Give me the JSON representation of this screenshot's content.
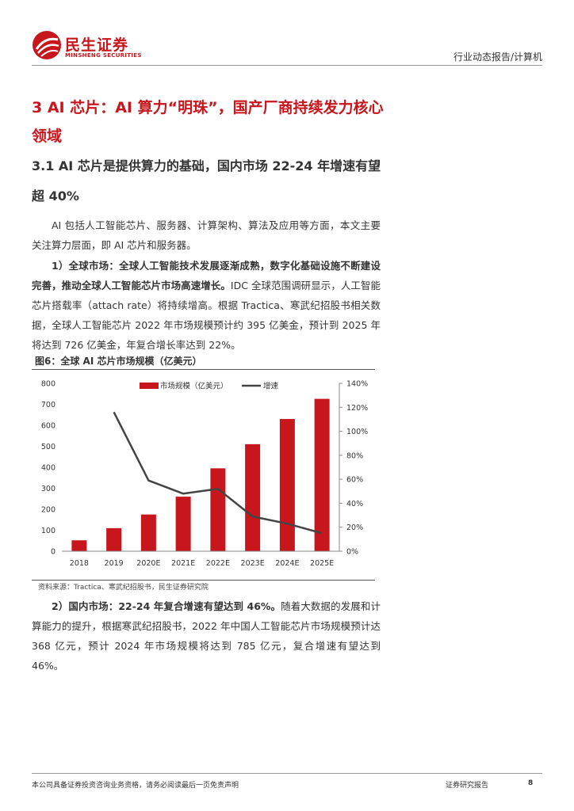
{
  "header": {
    "logo_cn": "民生证券",
    "logo_en": "MINSHENG SECURITIES",
    "right_text": "行业动态报告/计算机"
  },
  "heading1": "3 AI 芯片：AI 算力“明珠”，国产厂商持续发力核心领域",
  "heading2": "3.1 AI 芯片是提供算力的基础，国内市场 22-24 年增速有望超 40%",
  "para1": "AI 包括人工智能芯片、服务器、计算架构、算法及应用等方面，本文主要关注算力层面，即 AI 芯片和服务器。",
  "para2": {
    "bold": "1）全球市场：全球人工智能技术发展逐渐成熟，数字化基础设施不断建设完善，推动全球人工智能芯片市场高速增长。",
    "rest": "IDC 全球范围调研显示，人工智能芯片搭载率（attach rate）将持续增高。根据 Tractica、寒武纪招股书相关数据，全球人工智能芯片 2022 年市场规模预计约 395 亿美金，预计到 2025 年将达到 726 亿美金，年复合增长率达到 22%。"
  },
  "figure": {
    "title": "图6：全球 AI 芯片市场规模（亿美元）",
    "source": "资料来源：Tractica、寒武纪招股书，民生证券研究院"
  },
  "para3": {
    "bold": "2）国内市场：22-24 年复合增速有望达到 46%。",
    "rest": "随着大数据的发展和计算能力的提升，根据寒武纪招股书，2022 年中国人工智能芯片市场规模预计达 368 亿元，预计 2024 年市场规模将达到 785 亿元，复合增速有望达到 46%。"
  },
  "footer": {
    "left": "本公司具备证券投资咨询业务资格，请务必阅读最后一页免责声明",
    "middle": "证券研究报告",
    "page": "8"
  },
  "colors": {
    "brand_red": "#c8161d",
    "bar_red": "#c8161d",
    "line_gray": "#444444"
  },
  "chart_data": {
    "type": "bar",
    "categories": [
      "2018",
      "2019",
      "2020E",
      "2021E",
      "2022E",
      "2023E",
      "2024E",
      "2025E"
    ],
    "series": [
      {
        "name": "市场规模（亿美元）",
        "type": "bar",
        "axis": "left",
        "values": [
          52,
          110,
          175,
          260,
          395,
          510,
          630,
          726
        ]
      },
      {
        "name": "增速",
        "type": "line",
        "axis": "right",
        "values": [
          null,
          116,
          59,
          48,
          52,
          29,
          23,
          15
        ]
      }
    ],
    "yticks_left": [
      "0",
      "100",
      "200",
      "300",
      "400",
      "500",
      "600",
      "700",
      "800"
    ],
    "yticks_right": [
      "0%",
      "20%",
      "40%",
      "60%",
      "80%",
      "100%",
      "120%",
      "140%"
    ],
    "ylim_left": [
      0,
      800
    ],
    "ylim_right": [
      0,
      140
    ],
    "legend_position": "top",
    "grid": false
  }
}
